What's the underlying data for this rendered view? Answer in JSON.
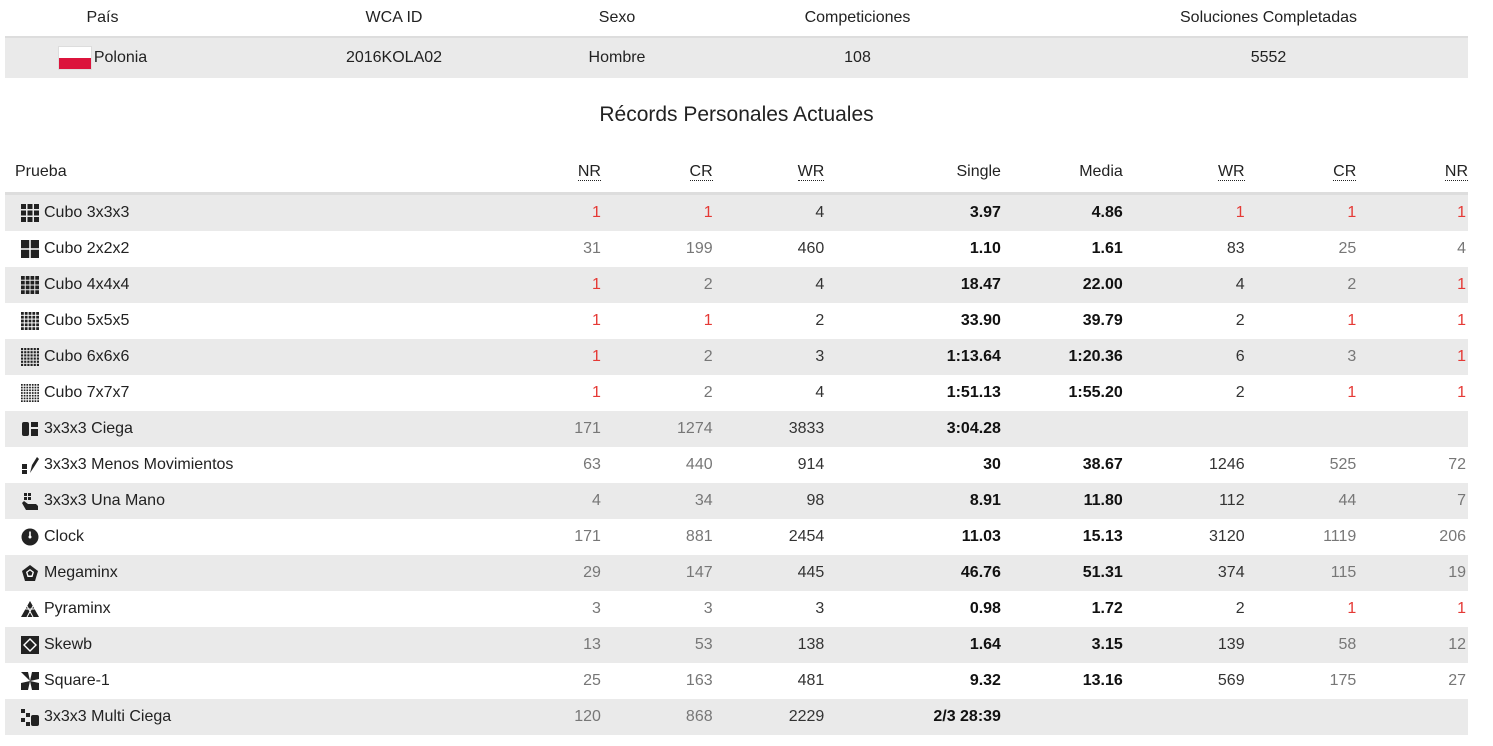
{
  "info": {
    "headers": [
      "País",
      "WCA ID",
      "Sexo",
      "Competiciones",
      "Soluciones Completadas"
    ],
    "country": "Polonia",
    "wca_id": "2016KOLA02",
    "gender": "Hombre",
    "competitions": "108",
    "solves": "5552",
    "flag_colors": [
      "#ffffff",
      "#dc143c"
    ]
  },
  "records_title": "Récords Personales Actuales",
  "records": {
    "headers": {
      "event": "Prueba",
      "nr_single": "NR",
      "cr_single": "CR",
      "wr_single": "WR",
      "single": "Single",
      "average": "Media",
      "wr_avg": "WR",
      "cr_avg": "CR",
      "nr_avg": "NR"
    },
    "rows": [
      {
        "event": "Cubo 3x3x3",
        "icon": "cube-3x3-icon",
        "nr": "1",
        "cr": "1",
        "wr": "4",
        "single": "3.97",
        "average": "4.86",
        "wr_a": "1",
        "cr_a": "1",
        "nr_a": "1"
      },
      {
        "event": "Cubo 2x2x2",
        "icon": "cube-2x2-icon",
        "nr": "31",
        "cr": "199",
        "wr": "460",
        "single": "1.10",
        "average": "1.61",
        "wr_a": "83",
        "cr_a": "25",
        "nr_a": "4"
      },
      {
        "event": "Cubo 4x4x4",
        "icon": "cube-4x4-icon",
        "nr": "1",
        "cr": "2",
        "wr": "4",
        "single": "18.47",
        "average": "22.00",
        "wr_a": "4",
        "cr_a": "2",
        "nr_a": "1"
      },
      {
        "event": "Cubo 5x5x5",
        "icon": "cube-5x5-icon",
        "nr": "1",
        "cr": "1",
        "wr": "2",
        "single": "33.90",
        "average": "39.79",
        "wr_a": "2",
        "cr_a": "1",
        "nr_a": "1"
      },
      {
        "event": "Cubo 6x6x6",
        "icon": "cube-6x6-icon",
        "nr": "1",
        "cr": "2",
        "wr": "3",
        "single": "1:13.64",
        "average": "1:20.36",
        "wr_a": "6",
        "cr_a": "3",
        "nr_a": "1"
      },
      {
        "event": "Cubo 7x7x7",
        "icon": "cube-7x7-icon",
        "nr": "1",
        "cr": "2",
        "wr": "4",
        "single": "1:51.13",
        "average": "1:55.20",
        "wr_a": "2",
        "cr_a": "1",
        "nr_a": "1"
      },
      {
        "event": "3x3x3 Ciega",
        "icon": "blindfolded-icon",
        "nr": "171",
        "cr": "1274",
        "wr": "3833",
        "single": "3:04.28",
        "average": "",
        "wr_a": "",
        "cr_a": "",
        "nr_a": ""
      },
      {
        "event": "3x3x3 Menos Movimientos",
        "icon": "fewest-moves-icon",
        "nr": "63",
        "cr": "440",
        "wr": "914",
        "single": "30",
        "average": "38.67",
        "wr_a": "1246",
        "cr_a": "525",
        "nr_a": "72"
      },
      {
        "event": "3x3x3 Una Mano",
        "icon": "one-handed-icon",
        "nr": "4",
        "cr": "34",
        "wr": "98",
        "single": "8.91",
        "average": "11.80",
        "wr_a": "112",
        "cr_a": "44",
        "nr_a": "7"
      },
      {
        "event": "Clock",
        "icon": "clock-icon",
        "nr": "171",
        "cr": "881",
        "wr": "2454",
        "single": "11.03",
        "average": "15.13",
        "wr_a": "3120",
        "cr_a": "1119",
        "nr_a": "206"
      },
      {
        "event": "Megaminx",
        "icon": "megaminx-icon",
        "nr": "29",
        "cr": "147",
        "wr": "445",
        "single": "46.76",
        "average": "51.31",
        "wr_a": "374",
        "cr_a": "115",
        "nr_a": "19"
      },
      {
        "event": "Pyraminx",
        "icon": "pyraminx-icon",
        "nr": "3",
        "cr": "3",
        "wr": "3",
        "single": "0.98",
        "average": "1.72",
        "wr_a": "2",
        "cr_a": "1",
        "nr_a": "1"
      },
      {
        "event": "Skewb",
        "icon": "skewb-icon",
        "nr": "13",
        "cr": "53",
        "wr": "138",
        "single": "1.64",
        "average": "3.15",
        "wr_a": "139",
        "cr_a": "58",
        "nr_a": "12"
      },
      {
        "event": "Square-1",
        "icon": "square-1-icon",
        "nr": "25",
        "cr": "163",
        "wr": "481",
        "single": "9.32",
        "average": "13.16",
        "wr_a": "569",
        "cr_a": "175",
        "nr_a": "27"
      },
      {
        "event": "3x3x3 Multi Ciega",
        "icon": "multi-blind-icon",
        "nr": "120",
        "cr": "868",
        "wr": "2229",
        "single": "2/3 28:39",
        "average": "",
        "wr_a": "",
        "cr_a": "",
        "nr_a": ""
      }
    ]
  },
  "colors": {
    "record_rank": "#e53935",
    "stripe": "#eaeaea"
  }
}
